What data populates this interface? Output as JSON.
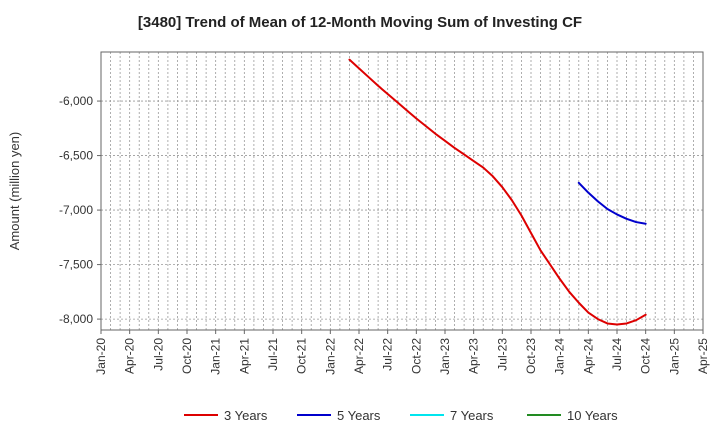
{
  "chart_data": {
    "type": "line",
    "title": "[3480]  Trend of Mean of 12-Month Moving Sum of Investing CF",
    "xlabel": "",
    "ylabel": "Amount (million yen)",
    "x_tick_labels": [
      "Jan-20",
      "Apr-20",
      "Jul-20",
      "Oct-20",
      "Jan-21",
      "Apr-21",
      "Jul-21",
      "Oct-21",
      "Jan-22",
      "Apr-22",
      "Jul-22",
      "Oct-22",
      "Jan-23",
      "Apr-23",
      "Jul-23",
      "Oct-23",
      "Jan-24",
      "Apr-24",
      "Jul-24",
      "Oct-24",
      "Jan-25",
      "Apr-25"
    ],
    "y_ticks": [
      -6000,
      -6500,
      -7000,
      -7500,
      -8000
    ],
    "y_tick_labels": [
      "-6,000",
      "-6,500",
      "-7,000",
      "-7,500",
      "-8,000"
    ],
    "xlim": [
      "2020-01",
      "2025-04"
    ],
    "ylim": [
      -8100,
      -5550
    ],
    "grid": true,
    "legend_position": "bottom",
    "series": [
      {
        "name": "3 Years",
        "color": "#dd0000",
        "points": [
          [
            "2022-03",
            -5620
          ],
          [
            "2022-04",
            -5700
          ],
          [
            "2022-05",
            -5780
          ],
          [
            "2022-06",
            -5860
          ],
          [
            "2022-07",
            -5935
          ],
          [
            "2022-08",
            -6010
          ],
          [
            "2022-09",
            -6085
          ],
          [
            "2022-10",
            -6160
          ],
          [
            "2022-11",
            -6230
          ],
          [
            "2022-12",
            -6300
          ],
          [
            "2023-01",
            -6365
          ],
          [
            "2023-02",
            -6430
          ],
          [
            "2023-03",
            -6490
          ],
          [
            "2023-04",
            -6550
          ],
          [
            "2023-05",
            -6610
          ],
          [
            "2023-06",
            -6690
          ],
          [
            "2023-07",
            -6790
          ],
          [
            "2023-08",
            -6910
          ],
          [
            "2023-09",
            -7050
          ],
          [
            "2023-10",
            -7210
          ],
          [
            "2023-11",
            -7370
          ],
          [
            "2023-12",
            -7500
          ],
          [
            "2024-01",
            -7630
          ],
          [
            "2024-02",
            -7750
          ],
          [
            "2024-03",
            -7850
          ],
          [
            "2024-04",
            -7940
          ],
          [
            "2024-05",
            -8000
          ],
          [
            "2024-06",
            -8040
          ],
          [
            "2024-07",
            -8050
          ],
          [
            "2024-08",
            -8040
          ],
          [
            "2024-09",
            -8010
          ],
          [
            "2024-10",
            -7960
          ]
        ]
      },
      {
        "name": "5 Years",
        "color": "#0000cc",
        "points": [
          [
            "2024-03",
            -6750
          ],
          [
            "2024-04",
            -6840
          ],
          [
            "2024-05",
            -6920
          ],
          [
            "2024-06",
            -6990
          ],
          [
            "2024-07",
            -7040
          ],
          [
            "2024-08",
            -7080
          ],
          [
            "2024-09",
            -7110
          ],
          [
            "2024-10",
            -7125
          ]
        ]
      },
      {
        "name": "7 Years",
        "color": "#00e5ee",
        "points": []
      },
      {
        "name": "10 Years",
        "color": "#228b22",
        "points": []
      }
    ]
  }
}
